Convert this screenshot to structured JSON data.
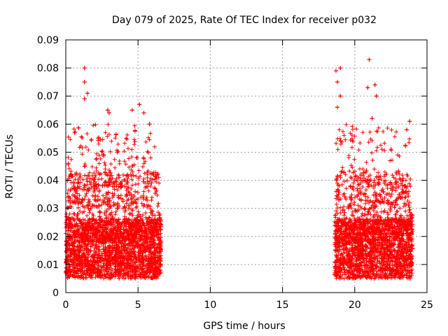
{
  "chart_data": {
    "type": "scatter",
    "title": "Day 079 of 2025, Rate Of TEC Index for receiver p032",
    "xlabel": "GPS time / hours",
    "ylabel": "ROTI / TECUs",
    "xlim": [
      0,
      25
    ],
    "ylim": [
      0,
      0.09
    ],
    "xticks": [
      0,
      5,
      10,
      15,
      20,
      25
    ],
    "xtick_labels": [
      "0",
      "5",
      "10",
      "15",
      "20",
      "25"
    ],
    "yticks": [
      0,
      0.01,
      0.02,
      0.03,
      0.04,
      0.05,
      0.06,
      0.07,
      0.08,
      0.09
    ],
    "ytick_labels": [
      "0",
      "0.01",
      "0.02",
      "0.03",
      "0.04",
      "0.05",
      "0.06",
      "0.07",
      "0.08",
      "0.09"
    ],
    "grid": true,
    "marker": "+",
    "marker_color": "#ff0000",
    "series": [
      {
        "name": "ROTI",
        "segments": [
          {
            "x_start": 0.0,
            "x_end": 6.6,
            "typical_min": 0.005,
            "typical_max": 0.03
          },
          {
            "x_start": 18.6,
            "x_end": 24.0,
            "typical_min": 0.005,
            "typical_max": 0.03
          }
        ],
        "peaks": [
          {
            "x": 1.3,
            "y": 0.08
          },
          {
            "x": 1.3,
            "y": 0.075
          },
          {
            "x": 1.5,
            "y": 0.071
          },
          {
            "x": 1.3,
            "y": 0.069
          },
          {
            "x": 2.9,
            "y": 0.065
          },
          {
            "x": 3.0,
            "y": 0.064
          },
          {
            "x": 4.6,
            "y": 0.065
          },
          {
            "x": 5.1,
            "y": 0.067
          },
          {
            "x": 5.4,
            "y": 0.064
          },
          {
            "x": 5.8,
            "y": 0.06
          },
          {
            "x": 18.7,
            "y": 0.079
          },
          {
            "x": 18.8,
            "y": 0.075
          },
          {
            "x": 19.0,
            "y": 0.08
          },
          {
            "x": 19.0,
            "y": 0.07
          },
          {
            "x": 18.8,
            "y": 0.066
          },
          {
            "x": 21.0,
            "y": 0.083
          },
          {
            "x": 20.9,
            "y": 0.073
          },
          {
            "x": 21.4,
            "y": 0.074
          },
          {
            "x": 21.5,
            "y": 0.07
          },
          {
            "x": 21.2,
            "y": 0.062
          },
          {
            "x": 23.8,
            "y": 0.061
          },
          {
            "x": 23.6,
            "y": 0.058
          }
        ]
      }
    ]
  }
}
